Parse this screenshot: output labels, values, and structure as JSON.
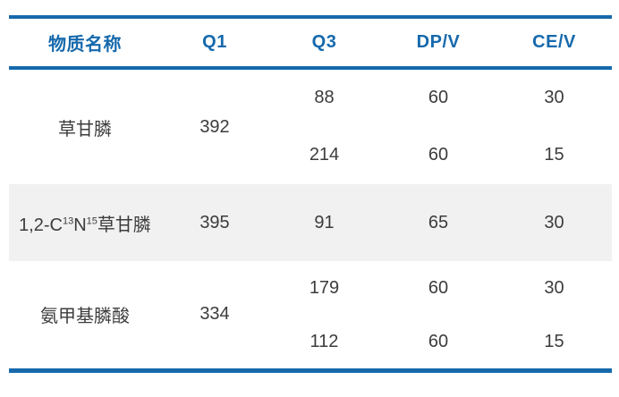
{
  "colors": {
    "accent": "#1669ac",
    "highlight_row_bg": "#f1f1f2",
    "body_text": "#3c3c3c"
  },
  "table": {
    "headers": [
      "物质名称",
      "Q1",
      "Q3",
      "DP/V",
      "CE/V"
    ],
    "groups": [
      {
        "name": "草甘膦",
        "q1": "392",
        "rows": [
          {
            "q3": "88",
            "dp": "60",
            "ce": "30"
          },
          {
            "q3": "214",
            "dp": "60",
            "ce": "15"
          }
        ]
      },
      {
        "name_parts": {
          "p1": "1,2-C",
          "sup1": "13",
          "p2": "N",
          "sup2": "15",
          "p3": "草甘膦"
        },
        "q1": "395",
        "rows": [
          {
            "q3": "91",
            "dp": "65",
            "ce": "30"
          }
        ],
        "highlighted": true
      },
      {
        "name": "氨甲基膦酸",
        "q1": "334",
        "rows": [
          {
            "q3": "179",
            "dp": "60",
            "ce": "30"
          },
          {
            "q3": "112",
            "dp": "60",
            "ce": "15"
          }
        ]
      }
    ]
  }
}
